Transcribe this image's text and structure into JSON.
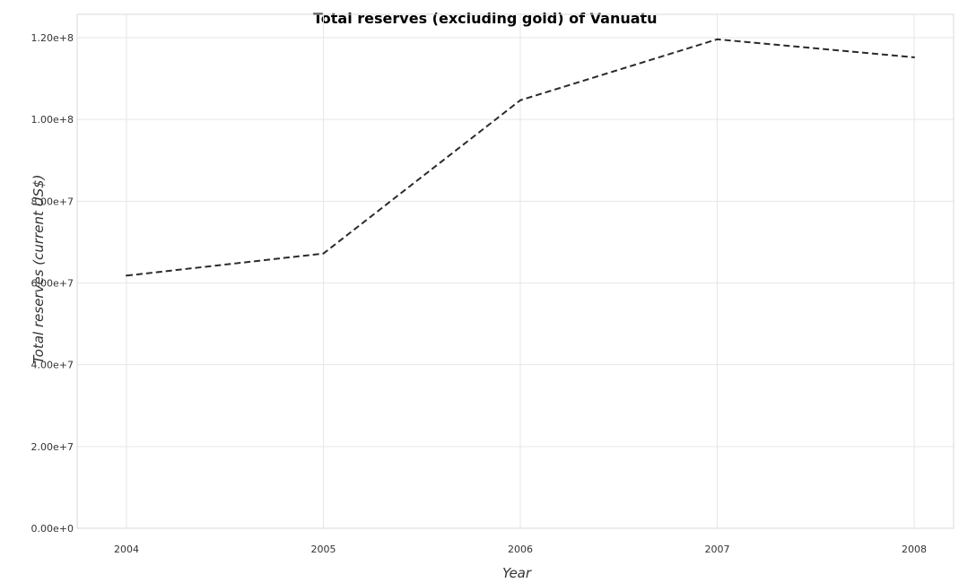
{
  "chart_data": {
    "type": "line",
    "title": "Total reserves (excluding gold) of Vanuatu",
    "xlabel": "Year",
    "ylabel": "Total reserves (current US$)",
    "categories": [
      "2004",
      "2005",
      "2006",
      "2007",
      "2008"
    ],
    "series": [
      {
        "values": [
          61800000,
          67200000,
          104700000,
          119600000,
          115200000
        ]
      }
    ],
    "ylim": [
      0,
      120000000
    ],
    "yticks": [
      0,
      20000000,
      40000000,
      60000000,
      80000000,
      100000000,
      120000000
    ],
    "ytick_labels": [
      "0.00e+0",
      "2.00e+7",
      "4.00e+7",
      "6.00e+7",
      "8.00e+7",
      "1.00e+8",
      "1.20e+8"
    ],
    "grid": true,
    "colors": {
      "line": "#2b2b2b",
      "grid": "#e6e6e6"
    }
  }
}
